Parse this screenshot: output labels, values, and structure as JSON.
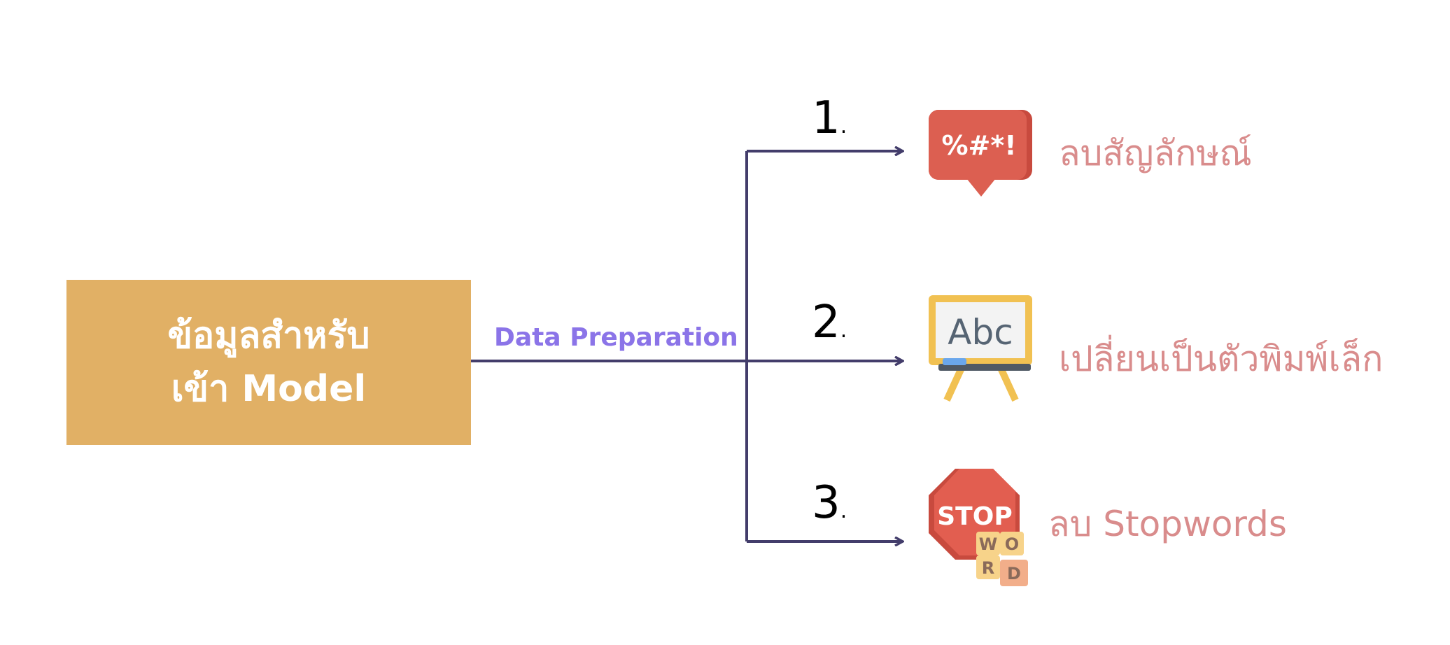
{
  "source": {
    "line1": "ข้อมูลสำหรับ",
    "line2": "เข้า Model"
  },
  "edge_label": "Data Preparation",
  "steps": [
    {
      "number": "1",
      "dot": ".",
      "label": "ลบสัญลักษณ์",
      "icon": "symbols-speech-bubble-icon"
    },
    {
      "number": "2",
      "dot": ".",
      "label": "เปลี่ยนเป็นตัวพิมพ์เล็ก",
      "icon": "abc-whiteboard-icon",
      "icon_text": "Abc"
    },
    {
      "number": "3",
      "dot": ".",
      "label": "ลบ Stopwords",
      "icon": "stop-sign-word-icon",
      "icon_text": "STOP",
      "tiles": [
        "W",
        "O",
        "R",
        "D"
      ]
    }
  ],
  "colors": {
    "box": "#e1b065",
    "edge_label": "#8b74e8",
    "connector": "#433d6b",
    "step_label": "#d98c8c"
  }
}
